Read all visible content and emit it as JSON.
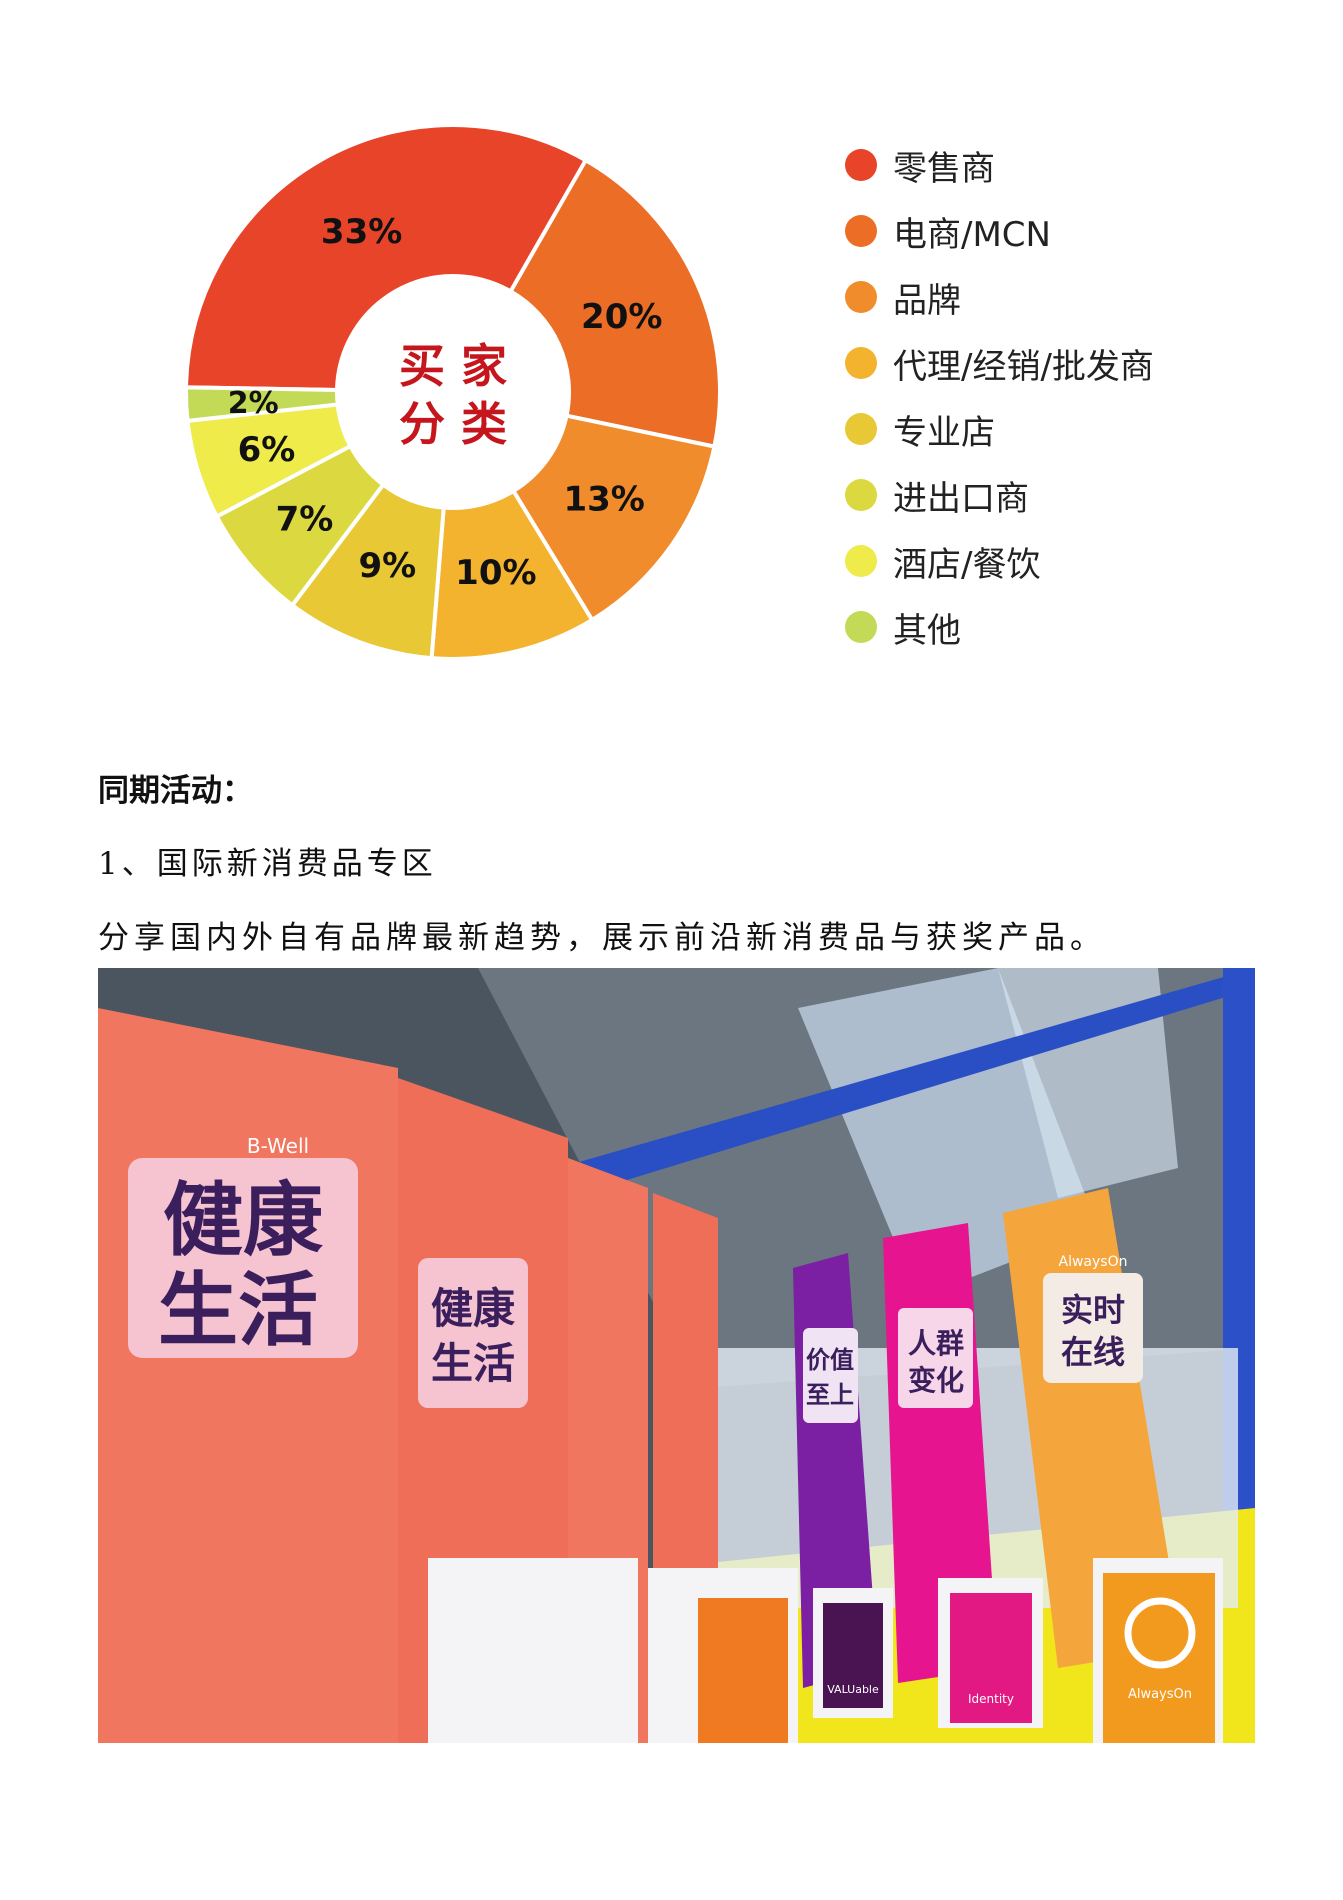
{
  "chart_data": {
    "type": "pie",
    "style": "donut",
    "center_label": [
      "买 家",
      "分 类"
    ],
    "categories": [
      "零售商",
      "电商/MCN",
      "品牌",
      "代理/经销/批发商",
      "专业店",
      "进出口商",
      "酒店/餐饮",
      "其他"
    ],
    "values": [
      33,
      20,
      13,
      10,
      9,
      7,
      6,
      2
    ],
    "labels": [
      "33%",
      "20%",
      "13%",
      "10%",
      "9%",
      "7%",
      "6%",
      "2%"
    ],
    "colors": [
      "#e8442a",
      "#ec6d25",
      "#f08c2b",
      "#f3b32f",
      "#e8c834",
      "#dcd83f",
      "#eeeb4b",
      "#c3da57"
    ],
    "legend_position": "right",
    "center_label_color": "#c4161c"
  },
  "text": {
    "heading": "同期活动：",
    "item1": "1、国际新消费品专区",
    "item1_desc": "分享国内外自有品牌最新趋势，展示前沿新消费品与获奖产品。"
  },
  "photo": {
    "banners_left": [
      "健康",
      "生活",
      "B-Well"
    ],
    "banner_purple": [
      "价值",
      "至上"
    ],
    "banner_magenta": [
      "人群",
      "变化"
    ],
    "banner_orange": [
      "实时",
      "在线",
      "AlwaysOn"
    ],
    "podium_labels": [
      "VALUable",
      "Identity",
      "AlwaysOn"
    ]
  }
}
